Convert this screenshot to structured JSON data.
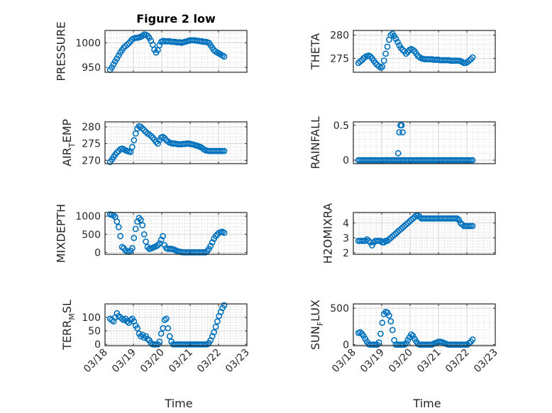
{
  "colors": {
    "marker": "#0072BD",
    "axis": "#262626"
  },
  "x_tick_labels": [
    "03/18",
    "03/19",
    "03/20",
    "03/21",
    "03/22",
    "03/23"
  ],
  "x_label": "Time",
  "chart_data": [
    {
      "type": "scatter",
      "title": "Figure 2 low",
      "ylabel": "PRESSURE",
      "xlim": [
        0,
        5
      ],
      "ylim": [
        940,
        1025
      ],
      "yticks": [
        950,
        1000
      ],
      "ytick_labels": [
        "950",
        "1000"
      ],
      "xticks": [
        0,
        1,
        2,
        3,
        4,
        5
      ],
      "grid": true,
      "x": [
        0.18,
        0.24,
        0.3,
        0.36,
        0.42,
        0.48,
        0.54,
        0.6,
        0.66,
        0.72,
        0.78,
        0.84,
        0.9,
        0.96,
        1.02,
        1.08,
        1.14,
        1.2,
        1.26,
        1.32,
        1.38,
        1.44,
        1.5,
        1.56,
        1.62,
        1.68,
        1.74,
        1.8,
        1.86,
        1.92,
        1.98,
        2.04,
        2.1,
        2.16,
        2.22,
        2.28,
        2.34,
        2.4,
        2.46,
        2.52,
        2.58,
        2.64,
        2.7,
        2.76,
        2.82,
        2.88,
        2.94,
        3.0,
        3.06,
        3.12,
        3.18,
        3.24,
        3.3,
        3.36,
        3.42,
        3.48,
        3.54,
        3.6,
        3.66,
        3.72,
        3.78,
        3.84,
        3.9,
        3.96,
        4.02,
        4.08,
        4.14,
        4.2
      ],
      "y": [
        945,
        950,
        956,
        962,
        968,
        974,
        980,
        985,
        990,
        993,
        996,
        999,
        1003,
        1007,
        1009,
        1010,
        1010,
        1011,
        1012,
        1014,
        1017,
        1016,
        1014,
        1010,
        1004,
        996,
        986,
        980,
        985,
        995,
        1002,
        1004,
        1003,
        1003,
        1003,
        1003,
        1002,
        1002,
        1002,
        1001,
        1001,
        1001,
        1000,
        1001,
        1002,
        1003,
        1004,
        1005,
        1005,
        1005,
        1005,
        1004,
        1004,
        1003,
        1003,
        1002,
        1002,
        1001,
        1000,
        995,
        990,
        985,
        982,
        980,
        978,
        976,
        974,
        972
      ]
    },
    {
      "type": "scatter",
      "title": "",
      "ylabel": "THETA",
      "xlim": [
        0,
        5
      ],
      "ylim": [
        272,
        281
      ],
      "yticks": [
        275,
        280
      ],
      "ytick_labels": [
        "275",
        "280"
      ],
      "xticks": [
        0,
        1,
        2,
        3,
        4,
        5
      ],
      "grid": true,
      "x": [
        0.18,
        0.24,
        0.3,
        0.36,
        0.42,
        0.48,
        0.54,
        0.6,
        0.66,
        0.72,
        0.78,
        0.84,
        0.9,
        0.96,
        1.02,
        1.08,
        1.14,
        1.2,
        1.26,
        1.32,
        1.38,
        1.44,
        1.5,
        1.56,
        1.62,
        1.68,
        1.74,
        1.8,
        1.86,
        1.92,
        1.98,
        2.04,
        2.1,
        2.16,
        2.22,
        2.28,
        2.34,
        2.4,
        2.46,
        2.52,
        2.58,
        2.64,
        2.7,
        2.76,
        2.82,
        2.88,
        2.94,
        3.0,
        3.06,
        3.12,
        3.18,
        3.24,
        3.3,
        3.36,
        3.42,
        3.48,
        3.54,
        3.6,
        3.66,
        3.72,
        3.78,
        3.84,
        3.9,
        3.96,
        4.02,
        4.08,
        4.14,
        4.2
      ],
      "y": [
        274.0,
        274.3,
        274.6,
        275.0,
        275.3,
        275.5,
        275.6,
        275.4,
        275.0,
        274.5,
        274.0,
        273.6,
        273.3,
        273.0,
        273.2,
        274.5,
        276.0,
        277.5,
        279.0,
        280.0,
        280.3,
        279.8,
        279.2,
        278.5,
        277.8,
        277.2,
        276.8,
        276.5,
        276.0,
        276.4,
        276.8,
        277.0,
        276.8,
        276.5,
        276.0,
        275.5,
        275.2,
        275.0,
        274.9,
        274.8,
        274.8,
        274.8,
        274.8,
        274.8,
        274.7,
        274.7,
        274.7,
        274.7,
        274.6,
        274.6,
        274.6,
        274.6,
        274.6,
        274.6,
        274.5,
        274.5,
        274.5,
        274.5,
        274.5,
        274.5,
        274.4,
        274.2,
        274.0,
        274.0,
        274.2,
        274.5,
        274.8,
        275.2
      ]
    },
    {
      "type": "scatter",
      "title": "",
      "ylabel": "AIR_TEMP",
      "xlim": [
        0,
        5
      ],
      "ylim": [
        269,
        281.5
      ],
      "yticks": [
        270,
        275,
        280
      ],
      "ytick_labels": [
        "270",
        "275",
        "280"
      ],
      "xticks": [
        0,
        1,
        2,
        3,
        4,
        5
      ],
      "grid": true,
      "x": [
        0.18,
        0.24,
        0.3,
        0.36,
        0.42,
        0.48,
        0.54,
        0.6,
        0.66,
        0.72,
        0.78,
        0.84,
        0.9,
        0.96,
        1.02,
        1.08,
        1.14,
        1.2,
        1.26,
        1.32,
        1.38,
        1.44,
        1.5,
        1.56,
        1.62,
        1.68,
        1.74,
        1.8,
        1.86,
        1.92,
        1.98,
        2.04,
        2.1,
        2.16,
        2.22,
        2.28,
        2.34,
        2.4,
        2.46,
        2.52,
        2.58,
        2.64,
        2.7,
        2.76,
        2.82,
        2.88,
        2.94,
        3.0,
        3.06,
        3.12,
        3.18,
        3.24,
        3.3,
        3.36,
        3.42,
        3.48,
        3.54,
        3.6,
        3.66,
        3.72,
        3.78,
        3.84,
        3.9,
        3.96,
        4.02,
        4.08,
        4.14,
        4.2
      ],
      "y": [
        269.5,
        270.2,
        271.0,
        271.7,
        272.3,
        272.8,
        273.3,
        273.5,
        273.3,
        273.0,
        272.8,
        272.6,
        272.5,
        274.0,
        276.0,
        278.0,
        279.5,
        280.2,
        280.0,
        279.5,
        279.0,
        278.5,
        278.0,
        277.7,
        277.3,
        276.8,
        276.2,
        275.5,
        275.0,
        276.0,
        276.8,
        277.0,
        276.6,
        276.0,
        275.6,
        275.3,
        275.1,
        275.0,
        275.0,
        274.9,
        274.8,
        274.8,
        274.8,
        274.9,
        274.9,
        275.0,
        275.0,
        274.9,
        274.8,
        274.7,
        274.5,
        274.4,
        274.2,
        274.0,
        273.7,
        273.3,
        273.0,
        272.9,
        272.8,
        272.8,
        272.8,
        272.8,
        272.8,
        272.8,
        272.8,
        272.8,
        272.8,
        272.8
      ]
    },
    {
      "type": "scatter",
      "title": "",
      "ylabel": "RAINFALL",
      "xlim": [
        0,
        5
      ],
      "ylim": [
        -0.05,
        0.55
      ],
      "yticks": [
        0,
        0.5
      ],
      "ytick_labels": [
        "0",
        "0.5"
      ],
      "xticks": [
        0,
        1,
        2,
        3,
        4,
        5
      ],
      "grid": true,
      "x": [
        0.18,
        0.24,
        0.3,
        0.36,
        0.42,
        0.48,
        0.54,
        0.6,
        0.66,
        0.72,
        0.78,
        0.84,
        0.9,
        0.96,
        1.02,
        1.08,
        1.14,
        1.2,
        1.26,
        1.32,
        1.38,
        1.44,
        1.5,
        1.56,
        1.62,
        1.68,
        1.74,
        1.8,
        1.86,
        1.92,
        1.98,
        2.04,
        2.1,
        2.16,
        2.22,
        2.28,
        2.34,
        2.4,
        2.46,
        2.52,
        2.58,
        2.64,
        2.7,
        2.76,
        2.82,
        2.88,
        2.94,
        3.0,
        3.06,
        3.12,
        3.18,
        3.24,
        3.3,
        3.36,
        3.42,
        3.48,
        3.54,
        3.6,
        3.66,
        3.72,
        3.78,
        3.84,
        3.9,
        3.96,
        4.02,
        4.08,
        4.14,
        4.2,
        1.58,
        1.62,
        1.66,
        1.7,
        1.74
      ],
      "y": [
        0,
        0,
        0,
        0,
        0,
        0,
        0,
        0,
        0,
        0,
        0,
        0,
        0,
        0,
        0,
        0,
        0,
        0,
        0,
        0,
        0,
        0,
        0,
        0,
        0,
        0,
        0,
        0,
        0,
        0,
        0,
        0,
        0,
        0,
        0,
        0,
        0,
        0,
        0,
        0,
        0,
        0,
        0,
        0,
        0,
        0,
        0,
        0,
        0,
        0,
        0,
        0,
        0,
        0,
        0,
        0,
        0,
        0,
        0,
        0,
        0,
        0,
        0,
        0,
        0,
        0,
        0,
        0,
        0.1,
        0.4,
        0.5,
        0.5,
        0.4
      ]
    },
    {
      "type": "scatter",
      "title": "",
      "ylabel": "MIXDEPTH",
      "xlim": [
        0,
        5
      ],
      "ylim": [
        -50,
        1100
      ],
      "yticks": [
        0,
        500,
        1000
      ],
      "ytick_labels": [
        "0",
        "500",
        "1000"
      ],
      "xticks": [
        0,
        1,
        2,
        3,
        4,
        5
      ],
      "grid": true,
      "x": [
        0.18,
        0.24,
        0.3,
        0.36,
        0.42,
        0.48,
        0.54,
        0.6,
        0.66,
        0.72,
        0.78,
        0.84,
        0.9,
        0.96,
        1.02,
        1.08,
        1.14,
        1.2,
        1.26,
        1.32,
        1.38,
        1.44,
        1.5,
        1.56,
        1.62,
        1.68,
        1.74,
        1.8,
        1.86,
        1.92,
        1.98,
        2.04,
        2.1,
        2.16,
        2.22,
        2.28,
        2.34,
        2.4,
        2.46,
        2.52,
        2.58,
        2.64,
        2.7,
        2.76,
        2.82,
        2.88,
        2.94,
        3.0,
        3.06,
        3.12,
        3.18,
        3.24,
        3.3,
        3.36,
        3.42,
        3.48,
        3.54,
        3.6,
        3.66,
        3.72,
        3.78,
        3.84,
        3.9,
        3.96,
        4.02,
        4.08,
        4.14,
        4.2
      ],
      "y": [
        1050,
        1040,
        1020,
        980,
        850,
        700,
        450,
        150,
        120,
        60,
        30,
        20,
        50,
        120,
        400,
        650,
        850,
        950,
        900,
        750,
        500,
        300,
        150,
        100,
        110,
        130,
        150,
        170,
        200,
        250,
        350,
        450,
        200,
        120,
        100,
        100,
        100,
        90,
        70,
        50,
        30,
        20,
        10,
        5,
        5,
        5,
        5,
        5,
        5,
        5,
        5,
        5,
        5,
        5,
        5,
        5,
        5,
        40,
        100,
        180,
        280,
        380,
        450,
        500,
        540,
        560,
        570,
        540
      ]
    },
    {
      "type": "scatter",
      "title": "",
      "ylabel": "H2OMIXRA",
      "xlim": [
        0,
        5
      ],
      "ylim": [
        1.9,
        4.7
      ],
      "yticks": [
        2,
        3,
        4
      ],
      "ytick_labels": [
        "2",
        "3",
        "4"
      ],
      "xticks": [
        0,
        1,
        2,
        3,
        4,
        5
      ],
      "grid": true,
      "x": [
        0.18,
        0.24,
        0.3,
        0.36,
        0.42,
        0.48,
        0.54,
        0.6,
        0.66,
        0.72,
        0.78,
        0.84,
        0.9,
        0.96,
        1.02,
        1.08,
        1.14,
        1.2,
        1.26,
        1.32,
        1.38,
        1.44,
        1.5,
        1.56,
        1.62,
        1.68,
        1.74,
        1.8,
        1.86,
        1.92,
        1.98,
        2.04,
        2.1,
        2.16,
        2.22,
        2.28,
        2.34,
        2.4,
        2.46,
        2.52,
        2.58,
        2.64,
        2.7,
        2.76,
        2.82,
        2.88,
        2.94,
        3.0,
        3.06,
        3.12,
        3.18,
        3.24,
        3.3,
        3.36,
        3.42,
        3.48,
        3.54,
        3.6,
        3.66,
        3.72,
        3.78,
        3.84,
        3.9,
        3.96,
        4.02,
        4.08,
        4.14,
        4.2
      ],
      "y": [
        2.8,
        2.8,
        2.8,
        2.8,
        2.8,
        2.9,
        2.8,
        2.7,
        2.5,
        2.7,
        2.8,
        2.8,
        2.8,
        2.8,
        2.7,
        2.7,
        2.8,
        2.8,
        2.9,
        3.0,
        3.1,
        3.2,
        3.3,
        3.4,
        3.5,
        3.6,
        3.7,
        3.8,
        3.9,
        4.0,
        4.1,
        4.2,
        4.3,
        4.4,
        4.5,
        4.5,
        4.4,
        4.3,
        4.3,
        4.3,
        4.3,
        4.3,
        4.3,
        4.3,
        4.3,
        4.3,
        4.3,
        4.3,
        4.3,
        4.3,
        4.3,
        4.3,
        4.3,
        4.3,
        4.3,
        4.3,
        4.3,
        4.3,
        4.3,
        4.2,
        4.0,
        3.9,
        3.8,
        3.8,
        3.8,
        3.8,
        3.8,
        3.8
      ]
    },
    {
      "type": "scatter",
      "title": "",
      "ylabel": "TERR_MSL",
      "xlim": [
        0,
        5
      ],
      "ylim": [
        -5,
        150
      ],
      "yticks": [
        0,
        50,
        100
      ],
      "ytick_labels": [
        "0",
        "50",
        "100"
      ],
      "xticks": [
        0,
        1,
        2,
        3,
        4,
        5
      ],
      "xtick_labels": [
        "03/18",
        "03/19",
        "03/20",
        "03/21",
        "03/22",
        "03/23"
      ],
      "xlabel": "Time",
      "grid": true,
      "x": [
        0.18,
        0.24,
        0.3,
        0.36,
        0.42,
        0.48,
        0.54,
        0.6,
        0.66,
        0.72,
        0.78,
        0.84,
        0.9,
        0.96,
        1.02,
        1.08,
        1.14,
        1.2,
        1.26,
        1.32,
        1.38,
        1.44,
        1.5,
        1.56,
        1.62,
        1.68,
        1.74,
        1.8,
        1.86,
        1.92,
        1.98,
        2.04,
        2.1,
        2.16,
        2.22,
        2.28,
        2.34,
        2.4,
        2.46,
        2.52,
        2.58,
        2.64,
        2.7,
        2.76,
        2.82,
        2.88,
        2.94,
        3.0,
        3.06,
        3.12,
        3.18,
        3.24,
        3.3,
        3.36,
        3.42,
        3.48,
        3.54,
        3.6,
        3.66,
        3.72,
        3.78,
        3.84,
        3.9,
        3.96,
        4.02,
        4.08,
        4.14,
        4.2
      ],
      "y": [
        95,
        90,
        85,
        100,
        115,
        105,
        100,
        95,
        90,
        95,
        85,
        80,
        90,
        95,
        85,
        70,
        60,
        40,
        30,
        35,
        25,
        30,
        20,
        15,
        5,
        0,
        0,
        0,
        0,
        10,
        40,
        60,
        90,
        95,
        60,
        30,
        10,
        0,
        0,
        0,
        0,
        0,
        0,
        0,
        0,
        0,
        0,
        0,
        0,
        0,
        0,
        0,
        0,
        0,
        0,
        0,
        0,
        0,
        5,
        15,
        30,
        45,
        65,
        85,
        105,
        120,
        135,
        145
      ]
    },
    {
      "type": "scatter",
      "title": "",
      "ylabel": "SUN_FLUX",
      "xlim": [
        0,
        5
      ],
      "ylim": [
        -15,
        560
      ],
      "yticks": [
        0,
        500
      ],
      "ytick_labels": [
        "0",
        "500"
      ],
      "xticks": [
        0,
        1,
        2,
        3,
        4,
        5
      ],
      "xtick_labels": [
        "03/18",
        "03/19",
        "03/20",
        "03/21",
        "03/22",
        "03/23"
      ],
      "xlabel": "Time",
      "grid": true,
      "x": [
        0.18,
        0.24,
        0.3,
        0.36,
        0.42,
        0.48,
        0.54,
        0.6,
        0.66,
        0.72,
        0.78,
        0.84,
        0.9,
        0.96,
        1.02,
        1.08,
        1.14,
        1.2,
        1.26,
        1.32,
        1.38,
        1.44,
        1.5,
        1.56,
        1.62,
        1.68,
        1.74,
        1.8,
        1.86,
        1.92,
        1.98,
        2.04,
        2.1,
        2.16,
        2.22,
        2.28,
        2.34,
        2.4,
        2.46,
        2.52,
        2.58,
        2.64,
        2.7,
        2.76,
        2.82,
        2.88,
        2.94,
        3.0,
        3.06,
        3.12,
        3.18,
        3.24,
        3.3,
        3.36,
        3.42,
        3.48,
        3.54,
        3.6,
        3.66,
        3.72,
        3.78,
        3.84,
        3.9,
        3.96,
        4.02,
        4.08,
        4.14,
        4.2
      ],
      "y": [
        160,
        170,
        150,
        120,
        80,
        40,
        5,
        0,
        0,
        0,
        0,
        0,
        30,
        150,
        300,
        420,
        450,
        440,
        400,
        320,
        200,
        60,
        0,
        0,
        0,
        0,
        0,
        0,
        20,
        60,
        100,
        140,
        120,
        80,
        40,
        10,
        0,
        0,
        0,
        0,
        0,
        0,
        0,
        0,
        10,
        20,
        30,
        40,
        40,
        35,
        25,
        15,
        5,
        0,
        0,
        0,
        0,
        0,
        0,
        0,
        0,
        0,
        0,
        0,
        0,
        20,
        40,
        70
      ]
    }
  ]
}
